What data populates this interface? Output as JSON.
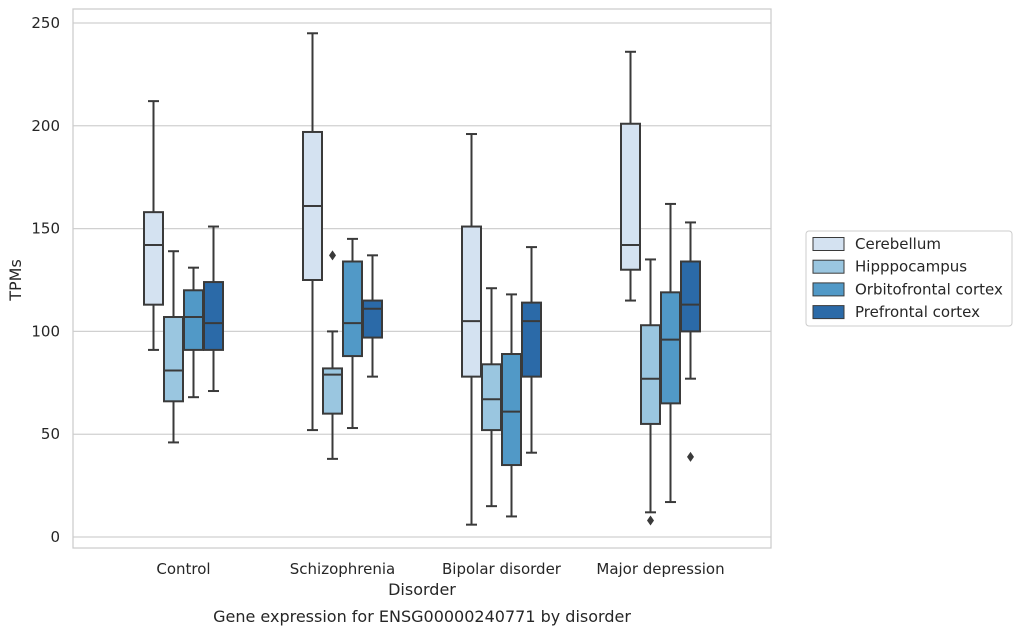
{
  "chart_data": {
    "type": "box",
    "caption": "Gene expression for ENSG00000240771 by disorder",
    "xlabel": "Disorder",
    "ylabel": "TPMs",
    "ylim": [
      -4,
      258
    ],
    "yticks": [
      0,
      50,
      100,
      150,
      200,
      250
    ],
    "grid": "horizontal",
    "legend_position": "right",
    "categories": [
      "Control",
      "Schizophrenia",
      "Bipolar disorder",
      "Major depression"
    ],
    "series": [
      {
        "name": "Cerebellum",
        "color": "#d4e2f1",
        "boxes": [
          {
            "whisker_low": 91,
            "q1": 113,
            "median": 142,
            "q3": 158,
            "whisker_high": 212,
            "outliers": []
          },
          {
            "whisker_low": 52,
            "q1": 125,
            "median": 161,
            "q3": 197,
            "whisker_high": 245,
            "outliers": []
          },
          {
            "whisker_low": 6,
            "q1": 78,
            "median": 105,
            "q3": 151,
            "whisker_high": 196,
            "outliers": []
          },
          {
            "whisker_low": 115,
            "q1": 130,
            "median": 142,
            "q3": 201,
            "whisker_high": 236,
            "outliers": []
          }
        ]
      },
      {
        "name": "Hipppocampus",
        "color": "#9ac6e0",
        "boxes": [
          {
            "whisker_low": 46,
            "q1": 66,
            "median": 81,
            "q3": 107,
            "whisker_high": 139,
            "outliers": []
          },
          {
            "whisker_low": 38,
            "q1": 60,
            "median": 79,
            "q3": 82,
            "whisker_high": 100,
            "outliers": [
              137
            ]
          },
          {
            "whisker_low": 15,
            "q1": 52,
            "median": 67,
            "q3": 84,
            "whisker_high": 121,
            "outliers": []
          },
          {
            "whisker_low": 12,
            "q1": 55,
            "median": 77,
            "q3": 103,
            "whisker_high": 135,
            "outliers": [
              8
            ]
          }
        ]
      },
      {
        "name": "Orbitofrontal cortex",
        "color": "#5199c7",
        "boxes": [
          {
            "whisker_low": 68,
            "q1": 91,
            "median": 107,
            "q3": 120,
            "whisker_high": 131,
            "outliers": []
          },
          {
            "whisker_low": 53,
            "q1": 88,
            "median": 104,
            "q3": 134,
            "whisker_high": 145,
            "outliers": []
          },
          {
            "whisker_low": 10,
            "q1": 35,
            "median": 61,
            "q3": 89,
            "whisker_high": 118,
            "outliers": []
          },
          {
            "whisker_low": 17,
            "q1": 65,
            "median": 96,
            "q3": 119,
            "whisker_high": 162,
            "outliers": []
          }
        ]
      },
      {
        "name": "Prefrontal cortex",
        "color": "#2b6aa8",
        "boxes": [
          {
            "whisker_low": 71,
            "q1": 91,
            "median": 104,
            "q3": 124,
            "whisker_high": 151,
            "outliers": []
          },
          {
            "whisker_low": 78,
            "q1": 97,
            "median": 111,
            "q3": 115,
            "whisker_high": 137,
            "outliers": []
          },
          {
            "whisker_low": 41,
            "q1": 78,
            "median": 105,
            "q3": 114,
            "whisker_high": 141,
            "outliers": []
          },
          {
            "whisker_low": 77,
            "q1": 100,
            "median": 113,
            "q3": 134,
            "whisker_high": 153,
            "outliers": [
              39
            ]
          }
        ]
      }
    ]
  }
}
